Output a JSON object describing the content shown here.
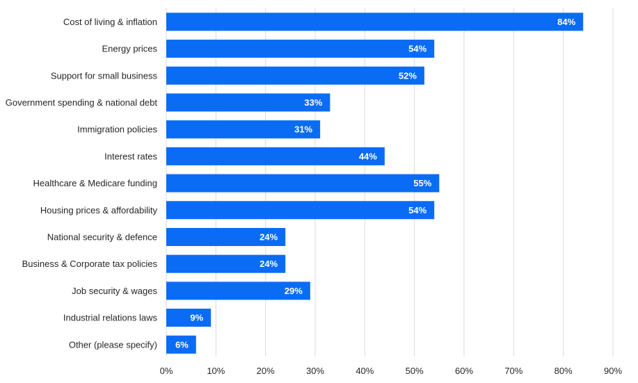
{
  "chart_data": {
    "type": "bar",
    "orientation": "horizontal",
    "title": "",
    "xlabel": "",
    "ylabel": "",
    "categories": [
      "Cost of living & inflation",
      "Energy prices",
      "Support for small business",
      "Government spending & national debt",
      "Immigration policies",
      "Interest rates",
      "Healthcare & Medicare funding",
      "Housing prices & affordability",
      "National security & defence",
      "Business & Corporate tax policies",
      "Job security & wages",
      "Industrial relations laws",
      "Other (please specify)"
    ],
    "values": [
      84,
      54,
      52,
      33,
      31,
      44,
      55,
      54,
      24,
      24,
      29,
      9,
      6
    ],
    "value_labels": [
      "84%",
      "54%",
      "52%",
      "33%",
      "31%",
      "44%",
      "55%",
      "54%",
      "24%",
      "24%",
      "29%",
      "9%",
      "6%"
    ],
    "x_ticks": [
      0,
      10,
      20,
      30,
      40,
      50,
      60,
      70,
      80,
      90
    ],
    "x_tick_labels": [
      "0%",
      "10%",
      "20%",
      "30%",
      "40%",
      "50%",
      "60%",
      "70%",
      "80%",
      "90%"
    ],
    "xlim": [
      0,
      90
    ],
    "grid": true,
    "legend": "none",
    "bar_color": "#0a6cf5"
  }
}
